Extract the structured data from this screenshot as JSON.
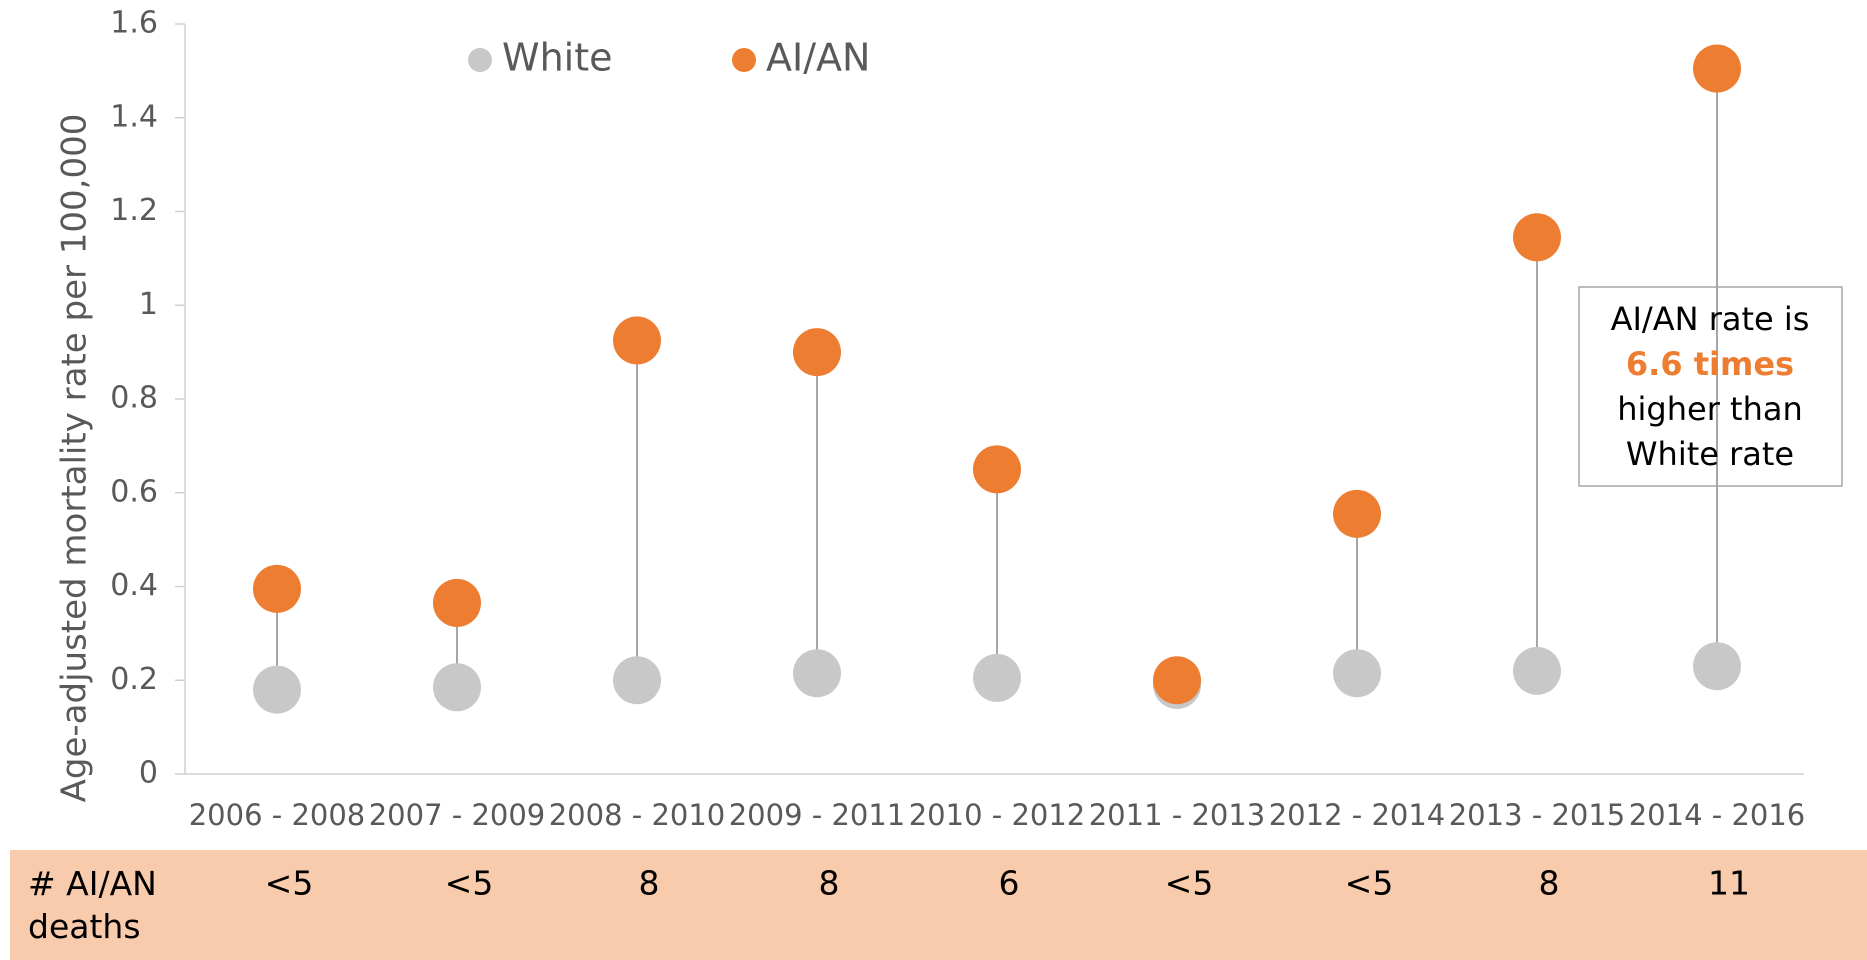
{
  "chart_data": {
    "type": "dumbbell",
    "ylabel": "Age-adjusted mortality rate per 100,000",
    "categories": [
      "2006 - 2008",
      "2007 - 2009",
      "2008 - 2010",
      "2009 - 2011",
      "2010 - 2012",
      "2011 - 2013",
      "2012 - 2014",
      "2013 - 2015",
      "2014 - 2016"
    ],
    "series": [
      {
        "name": "White",
        "color": "#c8c8c8",
        "values": [
          0.18,
          0.185,
          0.2,
          0.215,
          0.205,
          0.19,
          0.215,
          0.22,
          0.23
        ]
      },
      {
        "name": "AI/AN",
        "color": "#ed7d31",
        "values": [
          0.395,
          0.365,
          0.925,
          0.9,
          0.65,
          0.2,
          0.555,
          1.145,
          1.505
        ]
      }
    ],
    "ylim": [
      0,
      1.6
    ],
    "yticks": [
      0,
      0.2,
      0.4,
      0.6,
      0.8,
      1,
      1.2,
      1.4,
      1.6
    ],
    "annotation": [
      "AI/AN rate is",
      "6.6 times",
      "higher than",
      "White rate"
    ],
    "deaths_label": "# AI/AN deaths",
    "deaths": [
      "<5",
      "<5",
      8,
      8,
      6,
      "<5",
      "<5",
      8,
      11
    ]
  }
}
